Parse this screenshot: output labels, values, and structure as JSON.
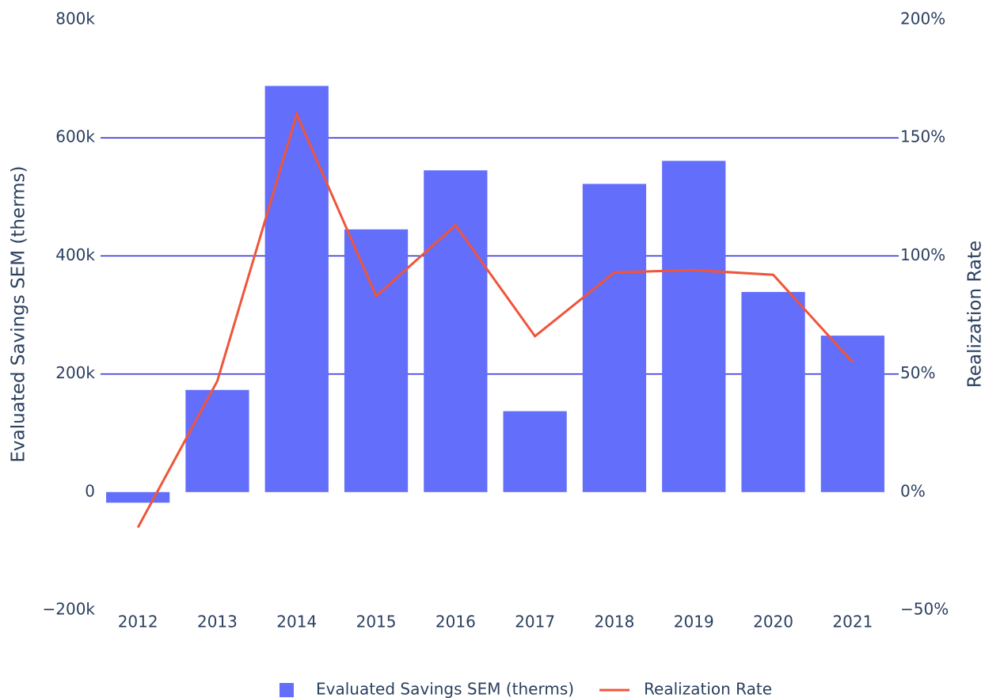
{
  "chart_data": {
    "type": "bar_line",
    "categories": [
      "2012",
      "2013",
      "2014",
      "2015",
      "2016",
      "2017",
      "2018",
      "2019",
      "2020",
      "2021"
    ],
    "series": [
      {
        "name": "Evaluated Savings SEM (therms)",
        "type": "bar",
        "color": "#636efa",
        "values": [
          -18000,
          173000,
          688000,
          445000,
          545000,
          137000,
          522000,
          561000,
          339000,
          265000
        ]
      },
      {
        "name": "Realization Rate",
        "type": "line",
        "axis": "y2",
        "color": "#ef553b",
        "values": [
          -15,
          47,
          160,
          83,
          113,
          66,
          93,
          94,
          92,
          55
        ]
      }
    ],
    "ylabel": "Evaluated Savings SEM (therms)",
    "y2label": "Realization Rate",
    "ylim": [
      -200000,
      800000
    ],
    "yticks": [
      {
        "value": -200000,
        "label": "−200k"
      },
      0,
      {
        "value": 200000,
        "label": "200k"
      },
      {
        "value": 400000,
        "label": "400k"
      },
      {
        "value": 600000,
        "label": "600k"
      },
      {
        "value": 800000,
        "label": "800k"
      }
    ],
    "y2lim": [
      -50,
      200
    ],
    "y2ticks": [
      {
        "value": -50,
        "label": "−50%"
      },
      {
        "value": 0,
        "label": "0%"
      },
      {
        "value": 50,
        "label": "50%"
      },
      {
        "value": 100,
        "label": "100%"
      },
      {
        "value": 150,
        "label": "150%"
      },
      {
        "value": 200,
        "label": "200%"
      }
    ],
    "grid": true,
    "grid_color": "#2b2bd9",
    "legend": "bottom"
  }
}
